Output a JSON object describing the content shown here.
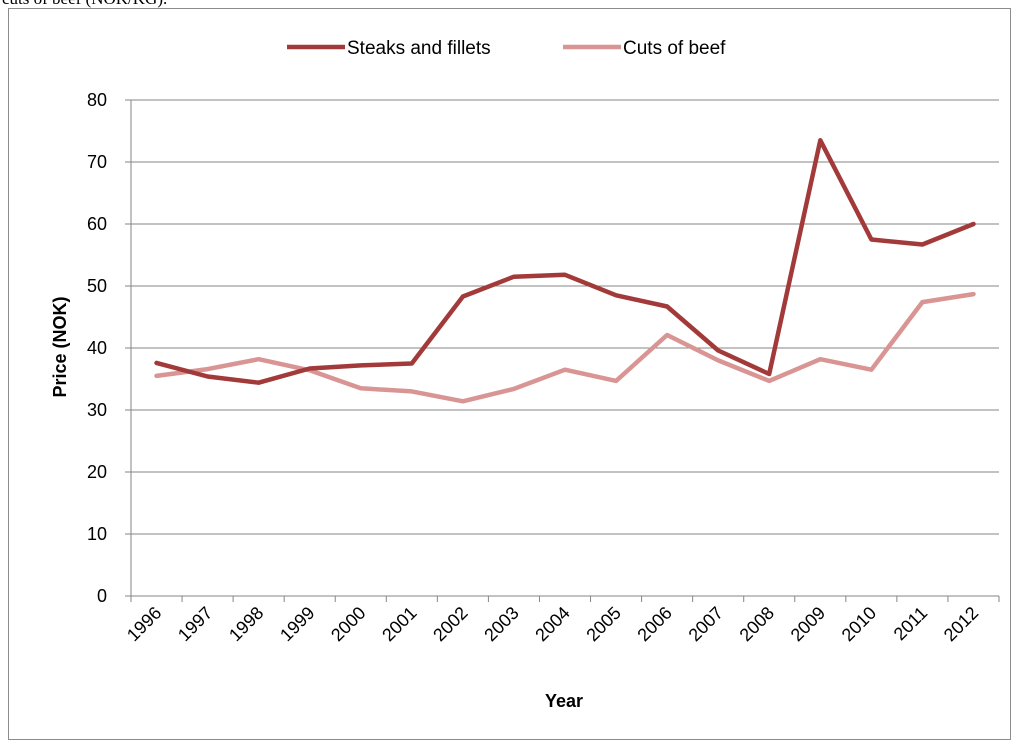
{
  "caption_fragment": "cuts of beef (NOK/KG).",
  "chart_data": {
    "type": "line",
    "title": "",
    "xlabel": "Year",
    "ylabel": "Price (NOK)",
    "ylim": [
      0,
      80
    ],
    "yticks": [
      0,
      10,
      20,
      30,
      40,
      50,
      60,
      70,
      80
    ],
    "grid": "horizontal",
    "legend_position": "top",
    "categories": [
      "1996",
      "1997",
      "1998",
      "1999",
      "2000",
      "2001",
      "2002",
      "2003",
      "2004",
      "2005",
      "2006",
      "2007",
      "2008",
      "2009",
      "2010",
      "2011",
      "2012"
    ],
    "series": [
      {
        "name": "Steaks and fillets",
        "color": "#a33a3a",
        "values": [
          37.6,
          35.4,
          34.4,
          36.7,
          37.2,
          37.5,
          48.3,
          51.5,
          51.8,
          48.5,
          46.7,
          39.6,
          35.8,
          73.5,
          57.5,
          56.7,
          60.0
        ]
      },
      {
        "name": "Cuts of beef",
        "color": "#d99594",
        "values": [
          35.5,
          36.6,
          38.2,
          36.4,
          33.5,
          33.0,
          31.4,
          33.4,
          36.5,
          34.7,
          42.1,
          38.0,
          34.7,
          38.2,
          36.5,
          47.4,
          48.7
        ]
      }
    ]
  }
}
